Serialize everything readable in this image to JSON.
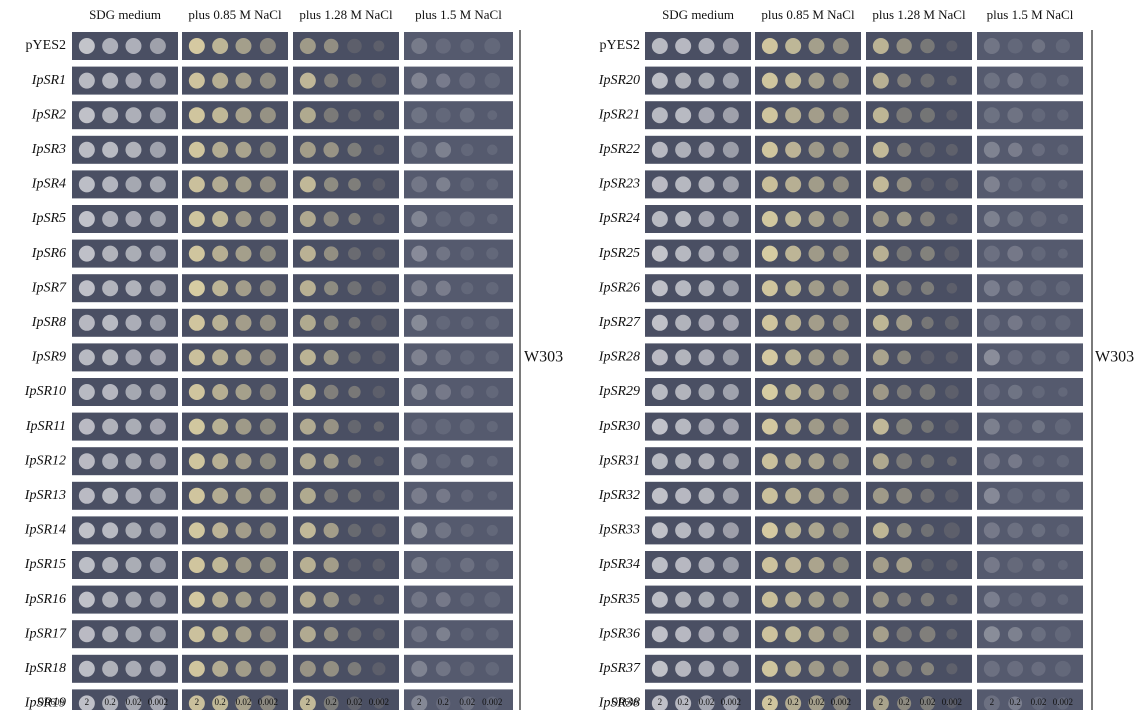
{
  "panels": [
    {
      "columns": [
        "SDG medium",
        "plus 0.85 M NaCl",
        "plus 1.28 M NaCl",
        "plus 1.5 M NaCl"
      ],
      "rows": [
        "pYES2",
        "IpSR1",
        "IpSR2",
        "IpSR3",
        "IpSR4",
        "IpSR5",
        "IpSR6",
        "IpSR7",
        "IpSR8",
        "IpSR9",
        "IpSR10",
        "IpSR11",
        "IpSR12",
        "IpSR13",
        "IpSR14",
        "IpSR15",
        "IpSR16",
        "IpSR17",
        "IpSR18",
        "IpSR19"
      ],
      "strain": "W303",
      "od_label": "OD600",
      "od_values": [
        "2",
        "0.2",
        "0.02",
        "0.002"
      ]
    },
    {
      "columns": [
        "SDG medium",
        "plus 0.85 M NaCl",
        "plus 1.28 M NaCl",
        "plus 1.5 M NaCl"
      ],
      "rows": [
        "pYES2",
        "IpSR20",
        "IpSR21",
        "IpSR22",
        "IpSR23",
        "IpSR24",
        "IpSR25",
        "IpSR26",
        "IpSR27",
        "IpSR28",
        "IpSR29",
        "IpSR30",
        "IpSR31",
        "IpSR32",
        "IpSR33",
        "IpSR34",
        "IpSR35",
        "IpSR36",
        "IpSR37",
        "IpSR38"
      ],
      "strain": "W303",
      "od_label": "OD600",
      "od_values": [
        "2",
        "0.2",
        "0.02",
        "0.002"
      ]
    }
  ]
}
